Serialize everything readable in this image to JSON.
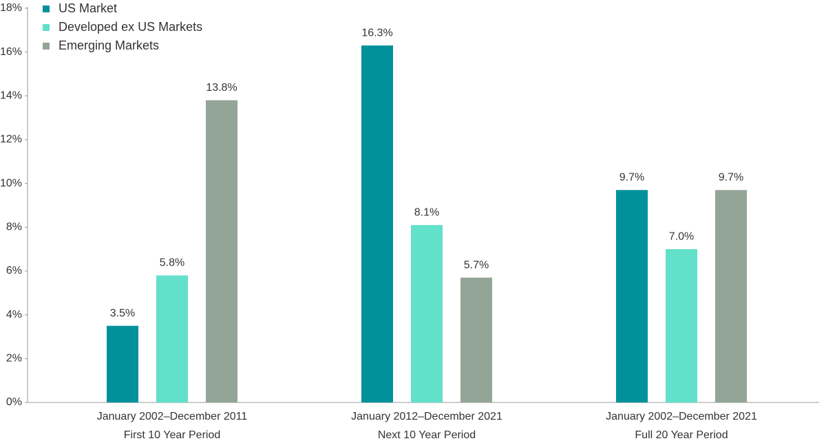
{
  "chart_data": {
    "type": "bar",
    "categories": [
      [
        "January 2002–December 2011",
        "First 10 Year Period"
      ],
      [
        "January 2012–December 2021",
        "Next 10 Year Period"
      ],
      [
        "January 2002–December 2021",
        "Full 20 Year Period"
      ]
    ],
    "series": [
      {
        "name": "US Market",
        "color": "#00919b",
        "values": [
          3.5,
          16.3,
          9.7
        ],
        "value_labels": [
          "3.5%",
          "16.3%",
          "9.7%"
        ]
      },
      {
        "name": "Developed ex US Markets",
        "color": "#62e0ca",
        "values": [
          5.8,
          8.1,
          7.0
        ],
        "value_labels": [
          "5.8%",
          "8.1%",
          "7.0%"
        ]
      },
      {
        "name": "Emerging Markets",
        "color": "#93a597",
        "values": [
          13.8,
          5.7,
          9.7
        ],
        "value_labels": [
          "13.8%",
          "5.7%",
          "9.7%"
        ]
      }
    ],
    "ylim": [
      0,
      18
    ],
    "yticks": [
      {
        "value": 0,
        "label": "0%"
      },
      {
        "value": 2,
        "label": "2%"
      },
      {
        "value": 4,
        "label": "4%"
      },
      {
        "value": 6,
        "label": "6%"
      },
      {
        "value": 8,
        "label": "8%"
      },
      {
        "value": 10,
        "label": "10%"
      },
      {
        "value": 12,
        "label": "12%"
      },
      {
        "value": 14,
        "label": "14%"
      },
      {
        "value": 16,
        "label": "16%"
      },
      {
        "value": 18,
        "label": "18%"
      }
    ],
    "legend": "top-left"
  }
}
